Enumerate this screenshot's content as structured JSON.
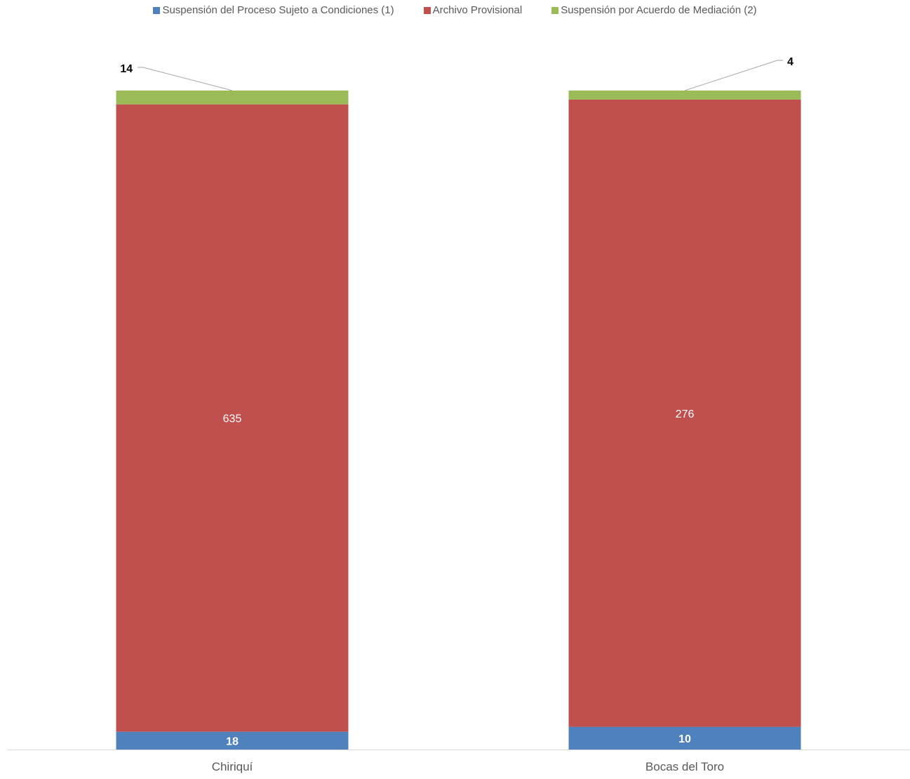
{
  "chart_data": {
    "type": "bar",
    "stacked": true,
    "categories": [
      "Chiriquí",
      "Bocas del Toro"
    ],
    "series": [
      {
        "name": "Suspensión del Proceso Sujeto a Condiciones (1)",
        "values": [
          18,
          10
        ],
        "color": "#4F81BD"
      },
      {
        "name": "Archivo Provisional",
        "values": [
          635,
          276
        ],
        "color": "#C0504D"
      },
      {
        "name": "Suspensión por Acuerdo de Mediación (2)",
        "values": [
          14,
          4
        ],
        "color": "#9BBB59"
      }
    ],
    "percent_stacked": true,
    "legend": "top",
    "grid": false,
    "title": "",
    "xlabel": "",
    "ylabel": ""
  }
}
